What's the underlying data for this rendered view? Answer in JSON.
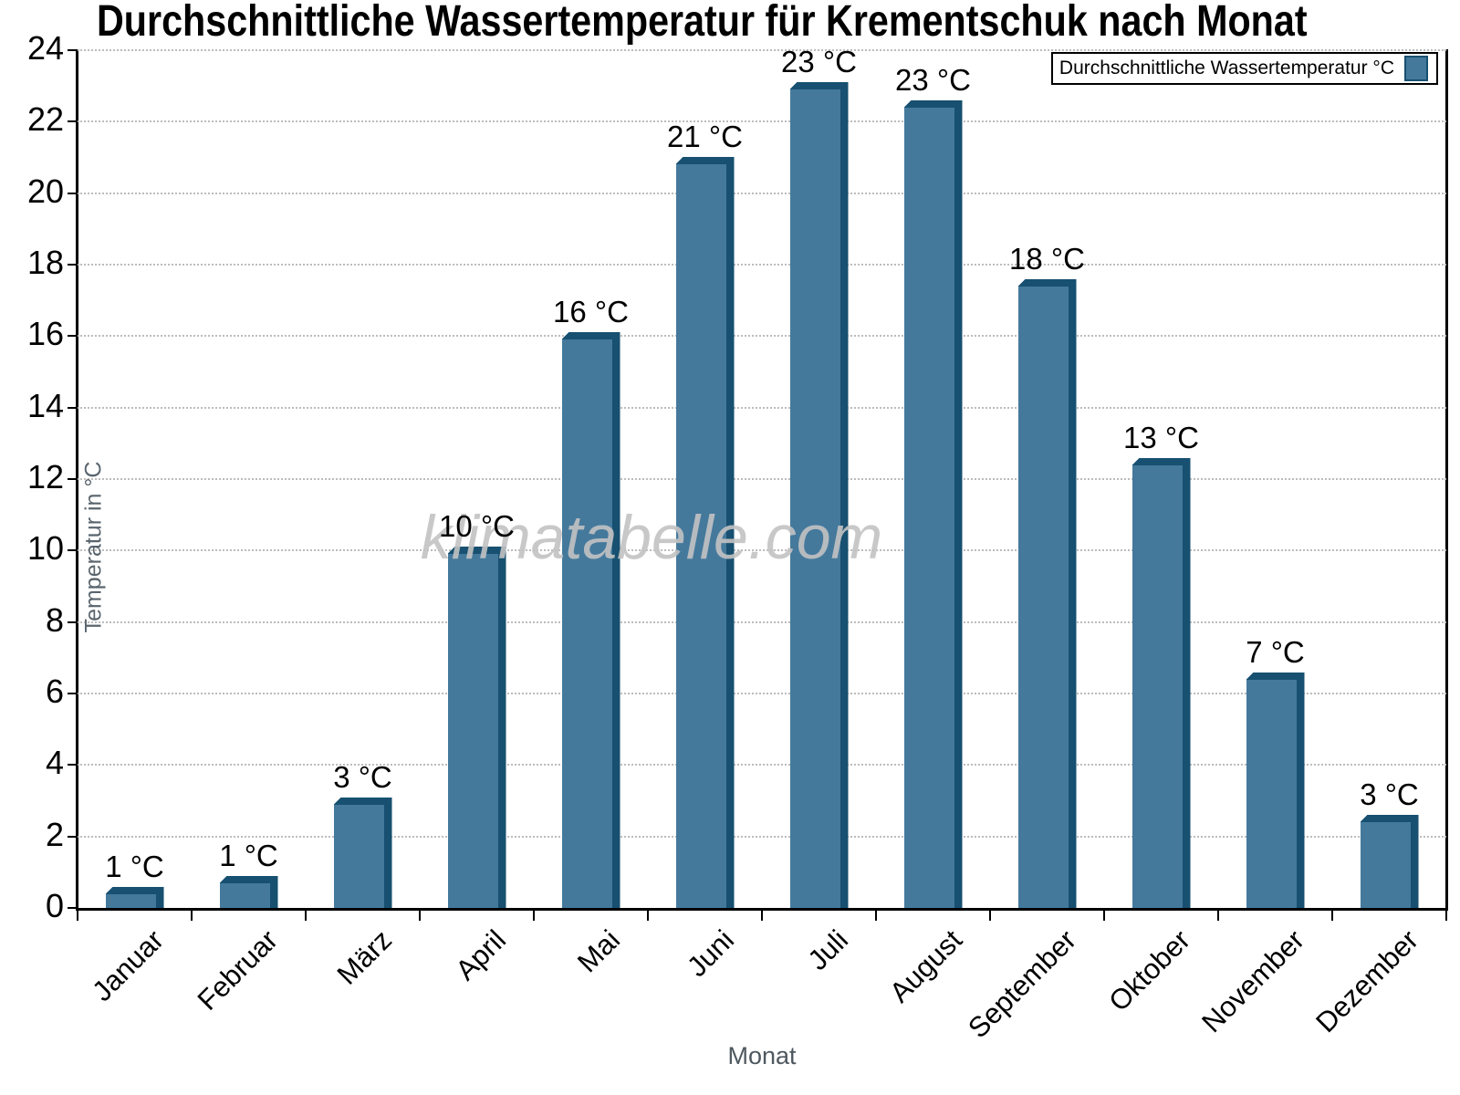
{
  "title": "Durchschnittliche Wassertemperatur für Krementschuk nach Monat",
  "watermark": "klimatabelle.com",
  "legend": {
    "label": "Durchschnittliche Wassertemperatur °C"
  },
  "axes": {
    "x_title": "Monat",
    "y_title": "Temperatur in °C"
  },
  "chart_data": {
    "type": "bar",
    "title": "Durchschnittliche Wassertemperatur für Krementschuk nach Monat",
    "categories": [
      "Januar",
      "Februar",
      "März",
      "April",
      "Mai",
      "Juni",
      "Juli",
      "August",
      "September",
      "Oktober",
      "November",
      "Dezember"
    ],
    "values": [
      0.6,
      0.9,
      3.1,
      10.1,
      16.1,
      21.0,
      23.1,
      22.6,
      17.6,
      12.6,
      6.6,
      2.6
    ],
    "bar_labels": [
      "1 °C",
      "1 °C",
      "3 °C",
      "10 °C",
      "16 °C",
      "21 °C",
      "23 °C",
      "23 °C",
      "18 °C",
      "13 °C",
      "7 °C",
      "3 °C"
    ],
    "xlabel": "Monat",
    "ylabel": "Temperatur in °C",
    "ylim": [
      0,
      24
    ],
    "ytick_step": 2,
    "grid": "horizontal-dotted",
    "legend": "Durchschnittliche Wassertemperatur °C",
    "legend_position": "top-right",
    "bar_color": "#44799c",
    "bar_shade_color": "#175070",
    "gridline_color": "#bcbcbc"
  }
}
